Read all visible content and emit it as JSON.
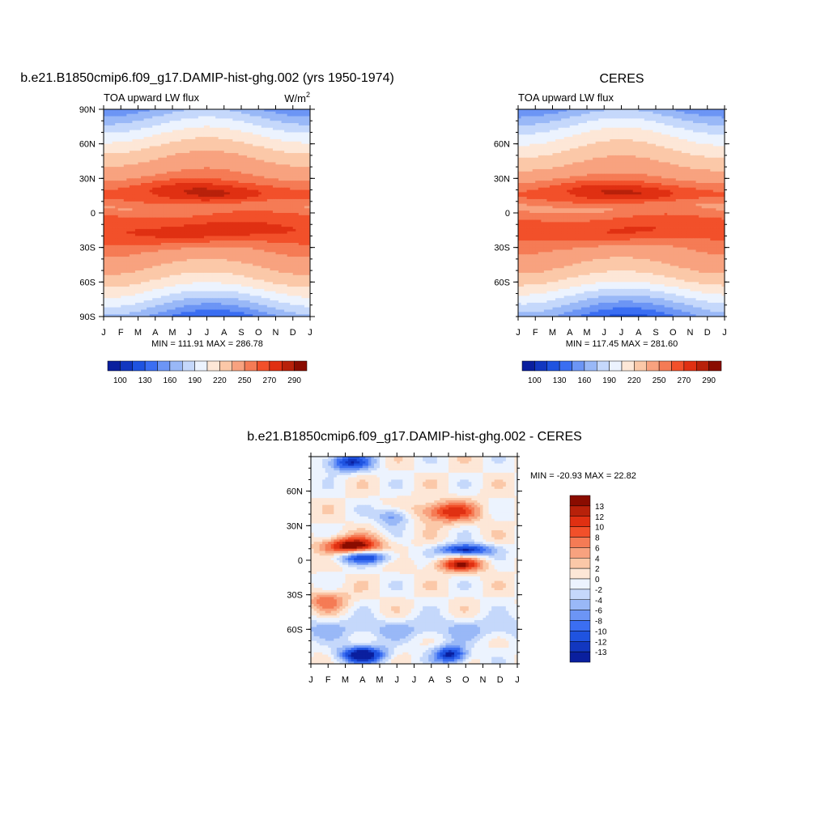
{
  "chart_data": [
    {
      "id": "model",
      "type": "heatmap",
      "title": "b.e21.B1850cmip6.f09_g17.DAMIP-hist-ghg.002 (yrs 1950-1974)",
      "left_label": "TOA upward LW flux",
      "units": "W/m",
      "units_sup": "2",
      "x_ticks": [
        "J",
        "F",
        "M",
        "A",
        "M",
        "J",
        "J",
        "A",
        "S",
        "O",
        "N",
        "D",
        "J"
      ],
      "y_ticks": [
        "90N",
        "60N",
        "30N",
        "0",
        "30S",
        "60S",
        "90S"
      ],
      "ylim": [
        -90,
        90
      ],
      "stats": "MIN = 111.91 MAX = 286.78",
      "min": 111.91,
      "max": 286.78,
      "levels": [
        100,
        115,
        130,
        145,
        160,
        175,
        190,
        205,
        220,
        235,
        250,
        260,
        270,
        280,
        290
      ],
      "colorbar_labels": [
        "100",
        "130",
        "160",
        "190",
        "220",
        "250",
        "270",
        "290"
      ]
    },
    {
      "id": "obs",
      "type": "heatmap",
      "title": "CERES",
      "left_label": "TOA upward LW flux",
      "x_ticks": [
        "J",
        "F",
        "M",
        "A",
        "M",
        "J",
        "J",
        "A",
        "S",
        "O",
        "N",
        "D",
        "J"
      ],
      "y_ticks": [
        "60N",
        "30N",
        "0",
        "30S",
        "60S"
      ],
      "ylim": [
        -90,
        90
      ],
      "stats": "MIN = 117.45 MAX = 281.60",
      "min": 117.45,
      "max": 281.6,
      "levels": [
        100,
        115,
        130,
        145,
        160,
        175,
        190,
        205,
        220,
        235,
        250,
        260,
        270,
        280,
        290
      ],
      "colorbar_labels": [
        "100",
        "130",
        "160",
        "190",
        "220",
        "250",
        "270",
        "290"
      ]
    },
    {
      "id": "diff",
      "type": "heatmap",
      "title": "b.e21.B1850cmip6.f09_g17.DAMIP-hist-ghg.002 - CERES",
      "x_ticks": [
        "J",
        "F",
        "M",
        "A",
        "M",
        "J",
        "J",
        "A",
        "S",
        "O",
        "N",
        "D",
        "J"
      ],
      "y_ticks": [
        "60N",
        "30N",
        "0",
        "30S",
        "60S"
      ],
      "ylim": [
        -90,
        90
      ],
      "stats": "MIN = -20.93 MAX =  22.82",
      "min": -20.93,
      "max": 22.82,
      "levels": [
        13,
        12,
        10,
        8,
        6,
        4,
        2,
        0,
        -2,
        -4,
        -6,
        -8,
        -10,
        -12,
        -13
      ],
      "colorbar_labels": [
        "13",
        "12",
        "10",
        "8",
        "6",
        "4",
        "2",
        "0",
        "-2",
        "-4",
        "-6",
        "-8",
        "-10",
        "-12",
        "-13"
      ]
    }
  ],
  "colors": {
    "scale": [
      "#00007f",
      "#0a1f9e",
      "#1237c0",
      "#1f53e0",
      "#3b6ef2",
      "#6c95f5",
      "#99b8f7",
      "#c5d8fb",
      "#ecf3fe",
      "#fde7d7",
      "#fbc8a8",
      "#f8a27f",
      "#f57b55",
      "#f2502a",
      "#e03012",
      "#b8210a",
      "#8a0c00"
    ]
  }
}
